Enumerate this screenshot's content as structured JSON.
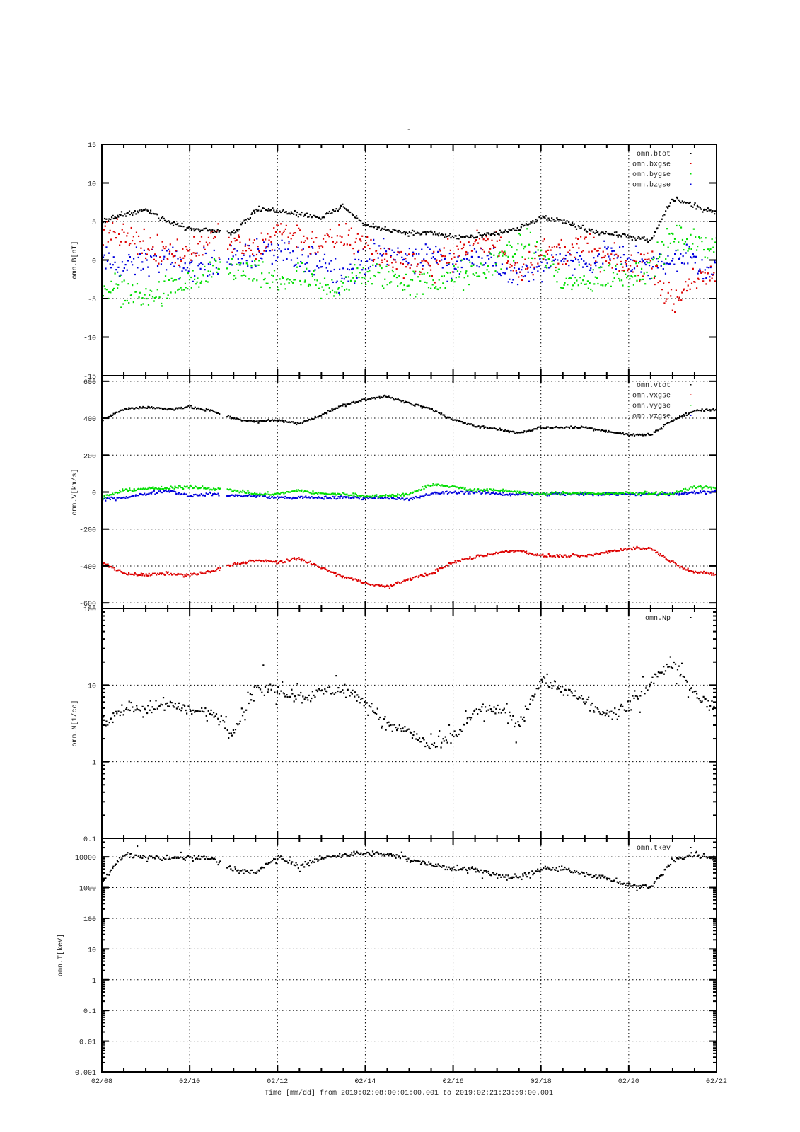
{
  "title": "-",
  "xlabel": "Time [mm/dd]  from 2019:02:08:00:01:00.001  to  2019:02:21:23:59:00.001",
  "x_ticks": [
    "02/08",
    "02/10",
    "02/12",
    "02/14",
    "02/16",
    "02/18",
    "02/20",
    "02/22"
  ],
  "chart_data": [
    {
      "type": "scatter",
      "ylabel": "omn.B[nT]",
      "yscale": "linear",
      "ylim": [
        -15,
        15
      ],
      "y_ticks": [
        15,
        10,
        5,
        0,
        -5,
        -10,
        -15
      ],
      "y_tick_labels": [
        "15",
        "10",
        "5",
        "0",
        "-5",
        "-10",
        "-15"
      ],
      "x_days": [
        0,
        0.5,
        1,
        1.5,
        2,
        2.5,
        3,
        3.5,
        4,
        4.5,
        5,
        5.5,
        6,
        6.5,
        7,
        7.5,
        8,
        8.5,
        9,
        9.5,
        10,
        10.5,
        11,
        11.5,
        12,
        12.5,
        13,
        13.5,
        14
      ],
      "gaps": [
        [
          2.7,
          2.85
        ]
      ],
      "legend": "top-right",
      "series": [
        {
          "name": "omn.btot",
          "color": "#000000",
          "values": [
            5,
            6,
            6.5,
            5,
            4,
            4,
            3.5,
            6.5,
            6.5,
            6,
            5.5,
            7,
            4.5,
            4,
            3.5,
            3.5,
            3,
            3,
            3.5,
            4,
            5.5,
            5,
            4,
            3.5,
            3,
            2.5,
            8,
            7,
            6
          ]
        },
        {
          "name": "omn.bxgse",
          "color": "#dd0000",
          "values": [
            4,
            3,
            2,
            1,
            1,
            3,
            2,
            1,
            4,
            3,
            2,
            3,
            2,
            0,
            0,
            -1,
            1,
            2,
            2,
            -1,
            1,
            1,
            2,
            0,
            -1,
            0,
            -6,
            -2,
            -3
          ]
        },
        {
          "name": "omn.bygse",
          "color": "#00dd00",
          "values": [
            -3,
            -4,
            -5,
            -4,
            -3,
            -2,
            -1,
            -2,
            -3,
            -2,
            -4,
            -3,
            -2,
            -2,
            -3,
            -3,
            -2,
            -2,
            0,
            2,
            1,
            -3,
            -3,
            -2,
            -2,
            -1,
            3,
            2,
            2
          ]
        },
        {
          "name": "omn.bzgse",
          "color": "#0000dd",
          "values": [
            0,
            -1,
            0,
            0,
            -1,
            0,
            0,
            1,
            1,
            0,
            0,
            -2,
            0,
            1,
            0,
            1,
            -1,
            1,
            -1,
            -2,
            -1,
            1,
            -1,
            1,
            0,
            -1,
            0,
            0,
            -2
          ]
        }
      ]
    },
    {
      "type": "scatter",
      "ylabel": "omn.V[km/s]",
      "yscale": "linear",
      "ylim": [
        -630,
        630
      ],
      "y_ticks": [
        600,
        400,
        200,
        0,
        -200,
        -400,
        -600
      ],
      "y_tick_labels": [
        "600",
        "400",
        "200",
        "0",
        "-200",
        "-400",
        "-600"
      ],
      "x_days": [
        0,
        0.5,
        1,
        1.5,
        2,
        2.5,
        3,
        3.5,
        4,
        4.5,
        5,
        5.5,
        6,
        6.5,
        7,
        7.5,
        8,
        8.5,
        9,
        9.5,
        10,
        10.5,
        11,
        11.5,
        12,
        12.5,
        13,
        13.5,
        14
      ],
      "gaps": [
        [
          2.7,
          2.85
        ]
      ],
      "legend": "top-right",
      "series": [
        {
          "name": "omn.vtot",
          "color": "#000000",
          "values": [
            390,
            450,
            460,
            450,
            460,
            440,
            400,
            380,
            390,
            370,
            420,
            470,
            500,
            520,
            480,
            450,
            390,
            360,
            340,
            320,
            350,
            350,
            350,
            330,
            310,
            310,
            390,
            440,
            450
          ]
        },
        {
          "name": "omn.vxgse",
          "color": "#dd0000",
          "values": [
            -380,
            -440,
            -450,
            -440,
            -450,
            -430,
            -390,
            -370,
            -380,
            -360,
            -410,
            -460,
            -490,
            -515,
            -470,
            -440,
            -380,
            -350,
            -330,
            -315,
            -345,
            -345,
            -345,
            -325,
            -305,
            -305,
            -380,
            -435,
            -445
          ]
        },
        {
          "name": "omn.vygse",
          "color": "#00dd00",
          "values": [
            -30,
            10,
            20,
            20,
            30,
            20,
            10,
            -10,
            -10,
            10,
            -10,
            -10,
            -20,
            -20,
            -10,
            40,
            30,
            10,
            10,
            0,
            -10,
            -5,
            -5,
            -10,
            -5,
            -5,
            -10,
            30,
            20
          ]
        },
        {
          "name": "omn.vzgse",
          "color": "#0000dd",
          "values": [
            -40,
            -30,
            -10,
            10,
            -20,
            -10,
            -20,
            -20,
            -30,
            -30,
            -30,
            -30,
            -30,
            -30,
            -40,
            -10,
            0,
            0,
            -10,
            -10,
            -10,
            -10,
            -10,
            -10,
            -10,
            -10,
            -10,
            0,
            0
          ]
        }
      ]
    },
    {
      "type": "scatter",
      "ylabel": "omn.N[1/cc]",
      "yscale": "log",
      "ylim": [
        0.1,
        100
      ],
      "y_ticks": [
        100,
        10,
        1,
        0.1
      ],
      "y_tick_labels": [
        "100",
        "10",
        "1",
        "0.1"
      ],
      "x_days": [
        0,
        0.5,
        1,
        1.5,
        2,
        2.5,
        3,
        3.5,
        4,
        4.5,
        5,
        5.5,
        6,
        6.5,
        7,
        7.5,
        8,
        8.5,
        9,
        9.5,
        10,
        10.5,
        11,
        11.5,
        12,
        12.5,
        13,
        13.5,
        14
      ],
      "gaps": [],
      "legend": "top-right",
      "series": [
        {
          "name": "omn.Np",
          "color": "#000000",
          "values": [
            3,
            5,
            4.5,
            6,
            4.5,
            4.5,
            2.5,
            9,
            9,
            7,
            8,
            9,
            6,
            3,
            2.5,
            1.5,
            2,
            4.5,
            5,
            3,
            12,
            9,
            6,
            4,
            5,
            11,
            20,
            8,
            4.5
          ]
        }
      ]
    },
    {
      "type": "scatter",
      "ylabel": "omn.T[keV]",
      "yscale": "log",
      "ylim": [
        0.001,
        40000
      ],
      "y_ticks": [
        10000,
        1000,
        100,
        10,
        1,
        0.1,
        0.01,
        0.001
      ],
      "y_tick_labels": [
        "10000",
        "1000",
        "100",
        "10",
        "1",
        "0.1",
        "0.01",
        "0.001"
      ],
      "x_days": [
        0,
        0.5,
        1,
        1.5,
        2,
        2.5,
        3,
        3.5,
        4,
        4.5,
        5,
        5.5,
        6,
        6.5,
        7,
        7.5,
        8,
        8.5,
        9,
        9.5,
        10,
        10.5,
        11,
        11.5,
        12,
        12.5,
        13,
        13.5,
        14
      ],
      "gaps": [
        [
          2.7,
          2.85
        ]
      ],
      "legend": "top-right",
      "series": [
        {
          "name": "omn.tkev",
          "color": "#000000",
          "values": [
            1500,
            12000,
            10000,
            9000,
            10000,
            9000,
            4000,
            3000,
            10000,
            5000,
            9000,
            12000,
            13000,
            12000,
            8000,
            6000,
            4000,
            4000,
            2500,
            2000,
            4000,
            4000,
            3000,
            2000,
            1200,
            1000,
            8000,
            12000,
            9000
          ]
        }
      ]
    }
  ]
}
